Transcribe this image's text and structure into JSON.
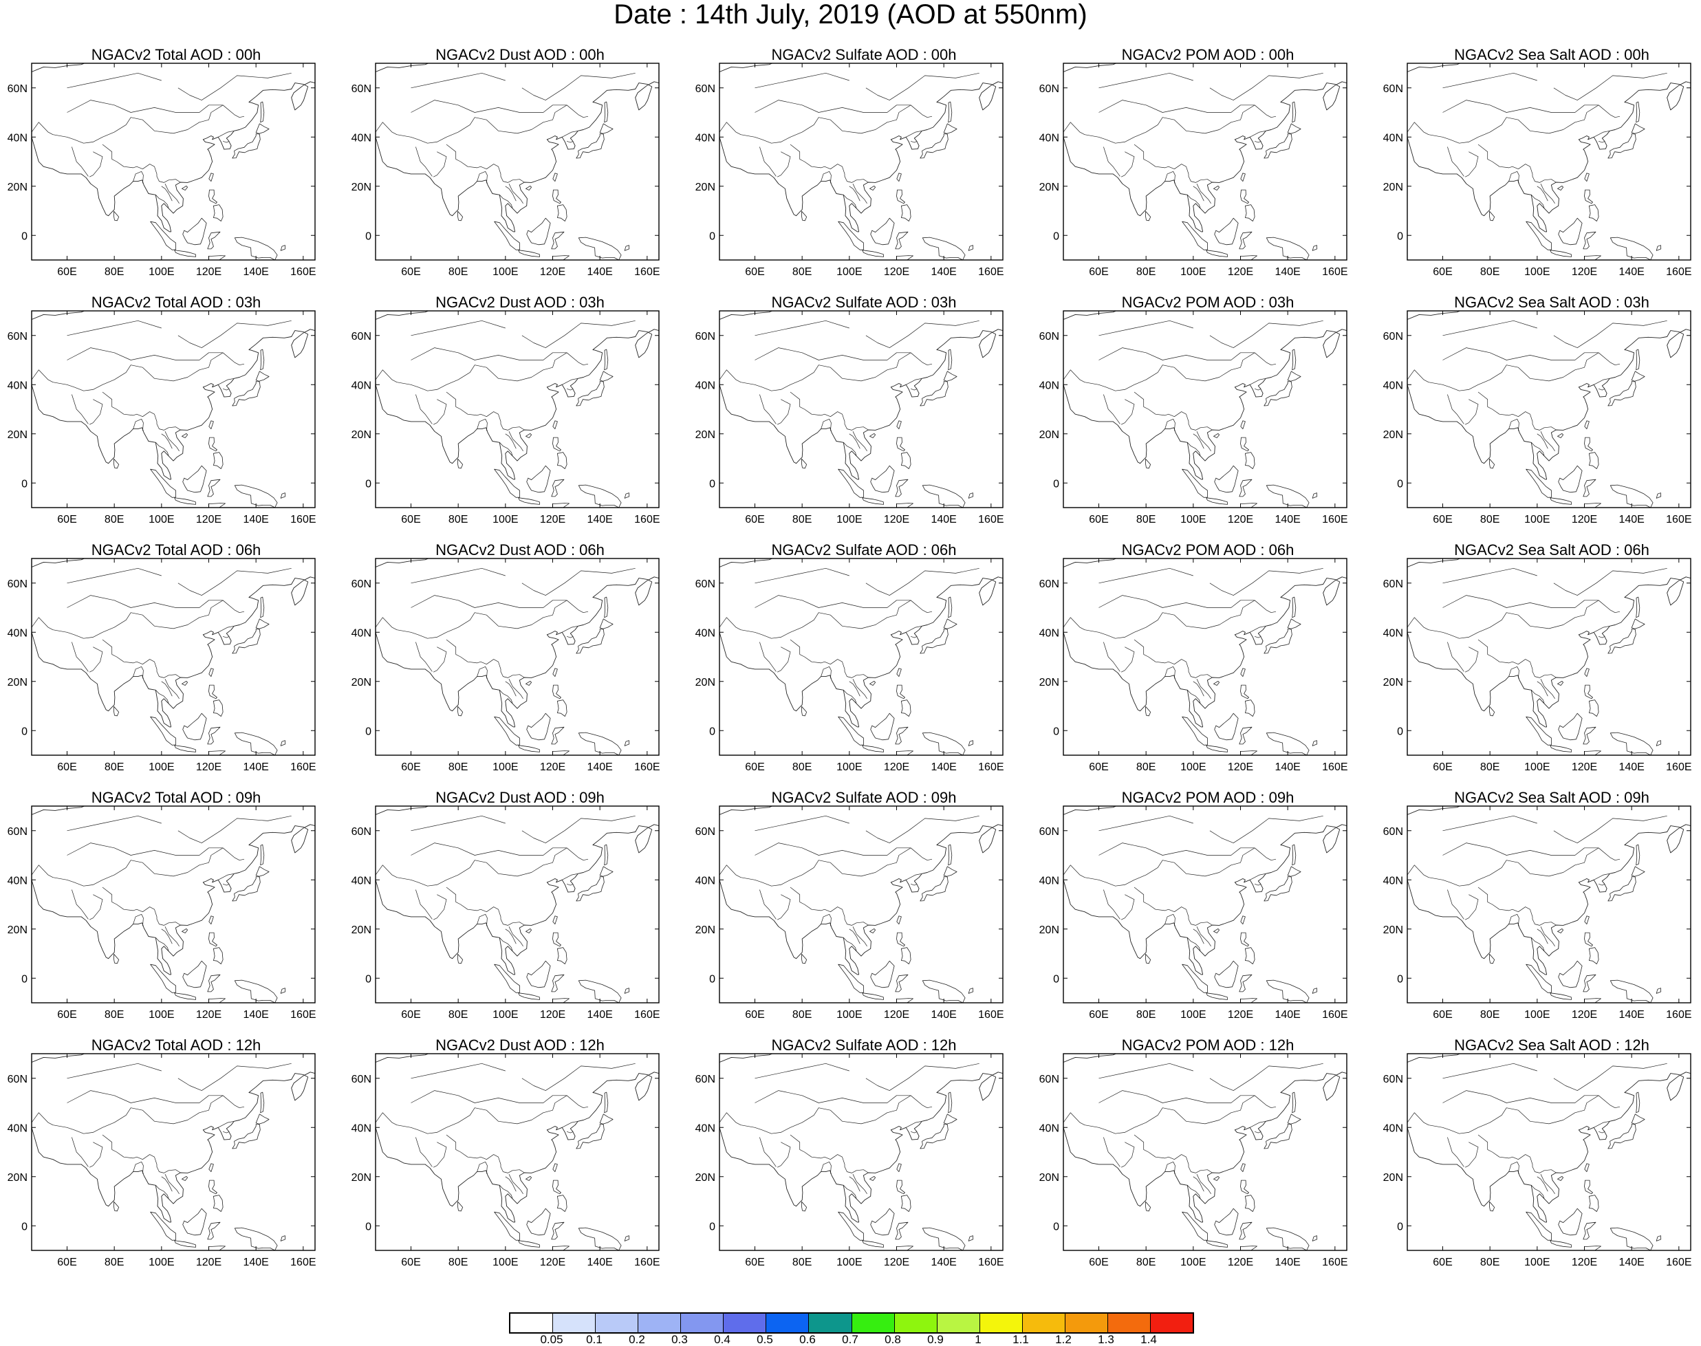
{
  "title": "Date : 14th July, 2019 (AOD at 550nm)",
  "map": {
    "lon_range": [
      45,
      165
    ],
    "lat_range": [
      -10,
      70
    ],
    "lon_ticks": [
      60,
      80,
      100,
      120,
      140,
      160
    ],
    "lon_tick_labels": [
      "60E",
      "80E",
      "100E",
      "120E",
      "140E",
      "160E"
    ],
    "lat_ticks": [
      0,
      20,
      40,
      60
    ],
    "lat_tick_labels": [
      "0",
      "20N",
      "40N",
      "60N"
    ]
  },
  "columns": [
    {
      "key": "total",
      "titles": [
        "NGACv2 Total AOD : 00h",
        "NGACv2 Total AOD : 03h",
        "NGACv2 Total AOD : 06h",
        "NGACv2 Total AOD : 09h",
        "NGACv2 Total AOD  : 12h"
      ]
    },
    {
      "key": "dust",
      "titles": [
        "NGACv2 Dust AOD : 00h",
        "NGACv2 Dust AOD : 03h",
        "NGACv2 Dust AOD : 06h",
        "NGACv2 Dust AOD : 09h",
        "NGACv2 Dust AOD : 12h"
      ]
    },
    {
      "key": "sulfate",
      "titles": [
        "NGACv2 Sulfate AOD : 00h",
        "NGACv2 Sulfate AOD : 03h",
        "NGACv2 Sulfate AOD : 06h",
        "NGACv2 Sulfate AOD : 09h",
        "NGACv2 Sulfate AOD : 12h"
      ]
    },
    {
      "key": "pom",
      "titles": [
        "NGACv2 POM AOD : 00h",
        "NGACv2 POM AOD : 03h",
        "NGACv2 POM AOD : 06h",
        "NGACv2 POM AOD : 09h",
        "NGACv2 POM  AOD : 12h"
      ]
    },
    {
      "key": "seasalt",
      "titles": [
        "NGACv2 Sea Salt AOD : 00h",
        "NGACv2 Sea Salt AOD : 03h",
        "NGACv2 Sea Salt AOD : 06h",
        "NGACv2 Sea Salt  AOD : 09h",
        "NGACv2 Sea Salt  AOD : 12h"
      ]
    }
  ],
  "colorbar": {
    "labels": [
      "0.05",
      "0.1",
      "0.2",
      "0.3",
      "0.4",
      "0.5",
      "0.6",
      "0.7",
      "0.8",
      "0.9",
      "1",
      "1.1",
      "1.2",
      "1.3",
      "1.4"
    ],
    "colors": [
      "#ffffff",
      "#d6e2fb",
      "#b9caf8",
      "#9eb3f5",
      "#8397f0",
      "#5f6deb",
      "#0c64f2",
      "#0d968c",
      "#36ee10",
      "#8ef50e",
      "#b9f542",
      "#f4f50b",
      "#f6bb0c",
      "#f49a0c",
      "#f36b0d",
      "#f21f10"
    ]
  }
}
